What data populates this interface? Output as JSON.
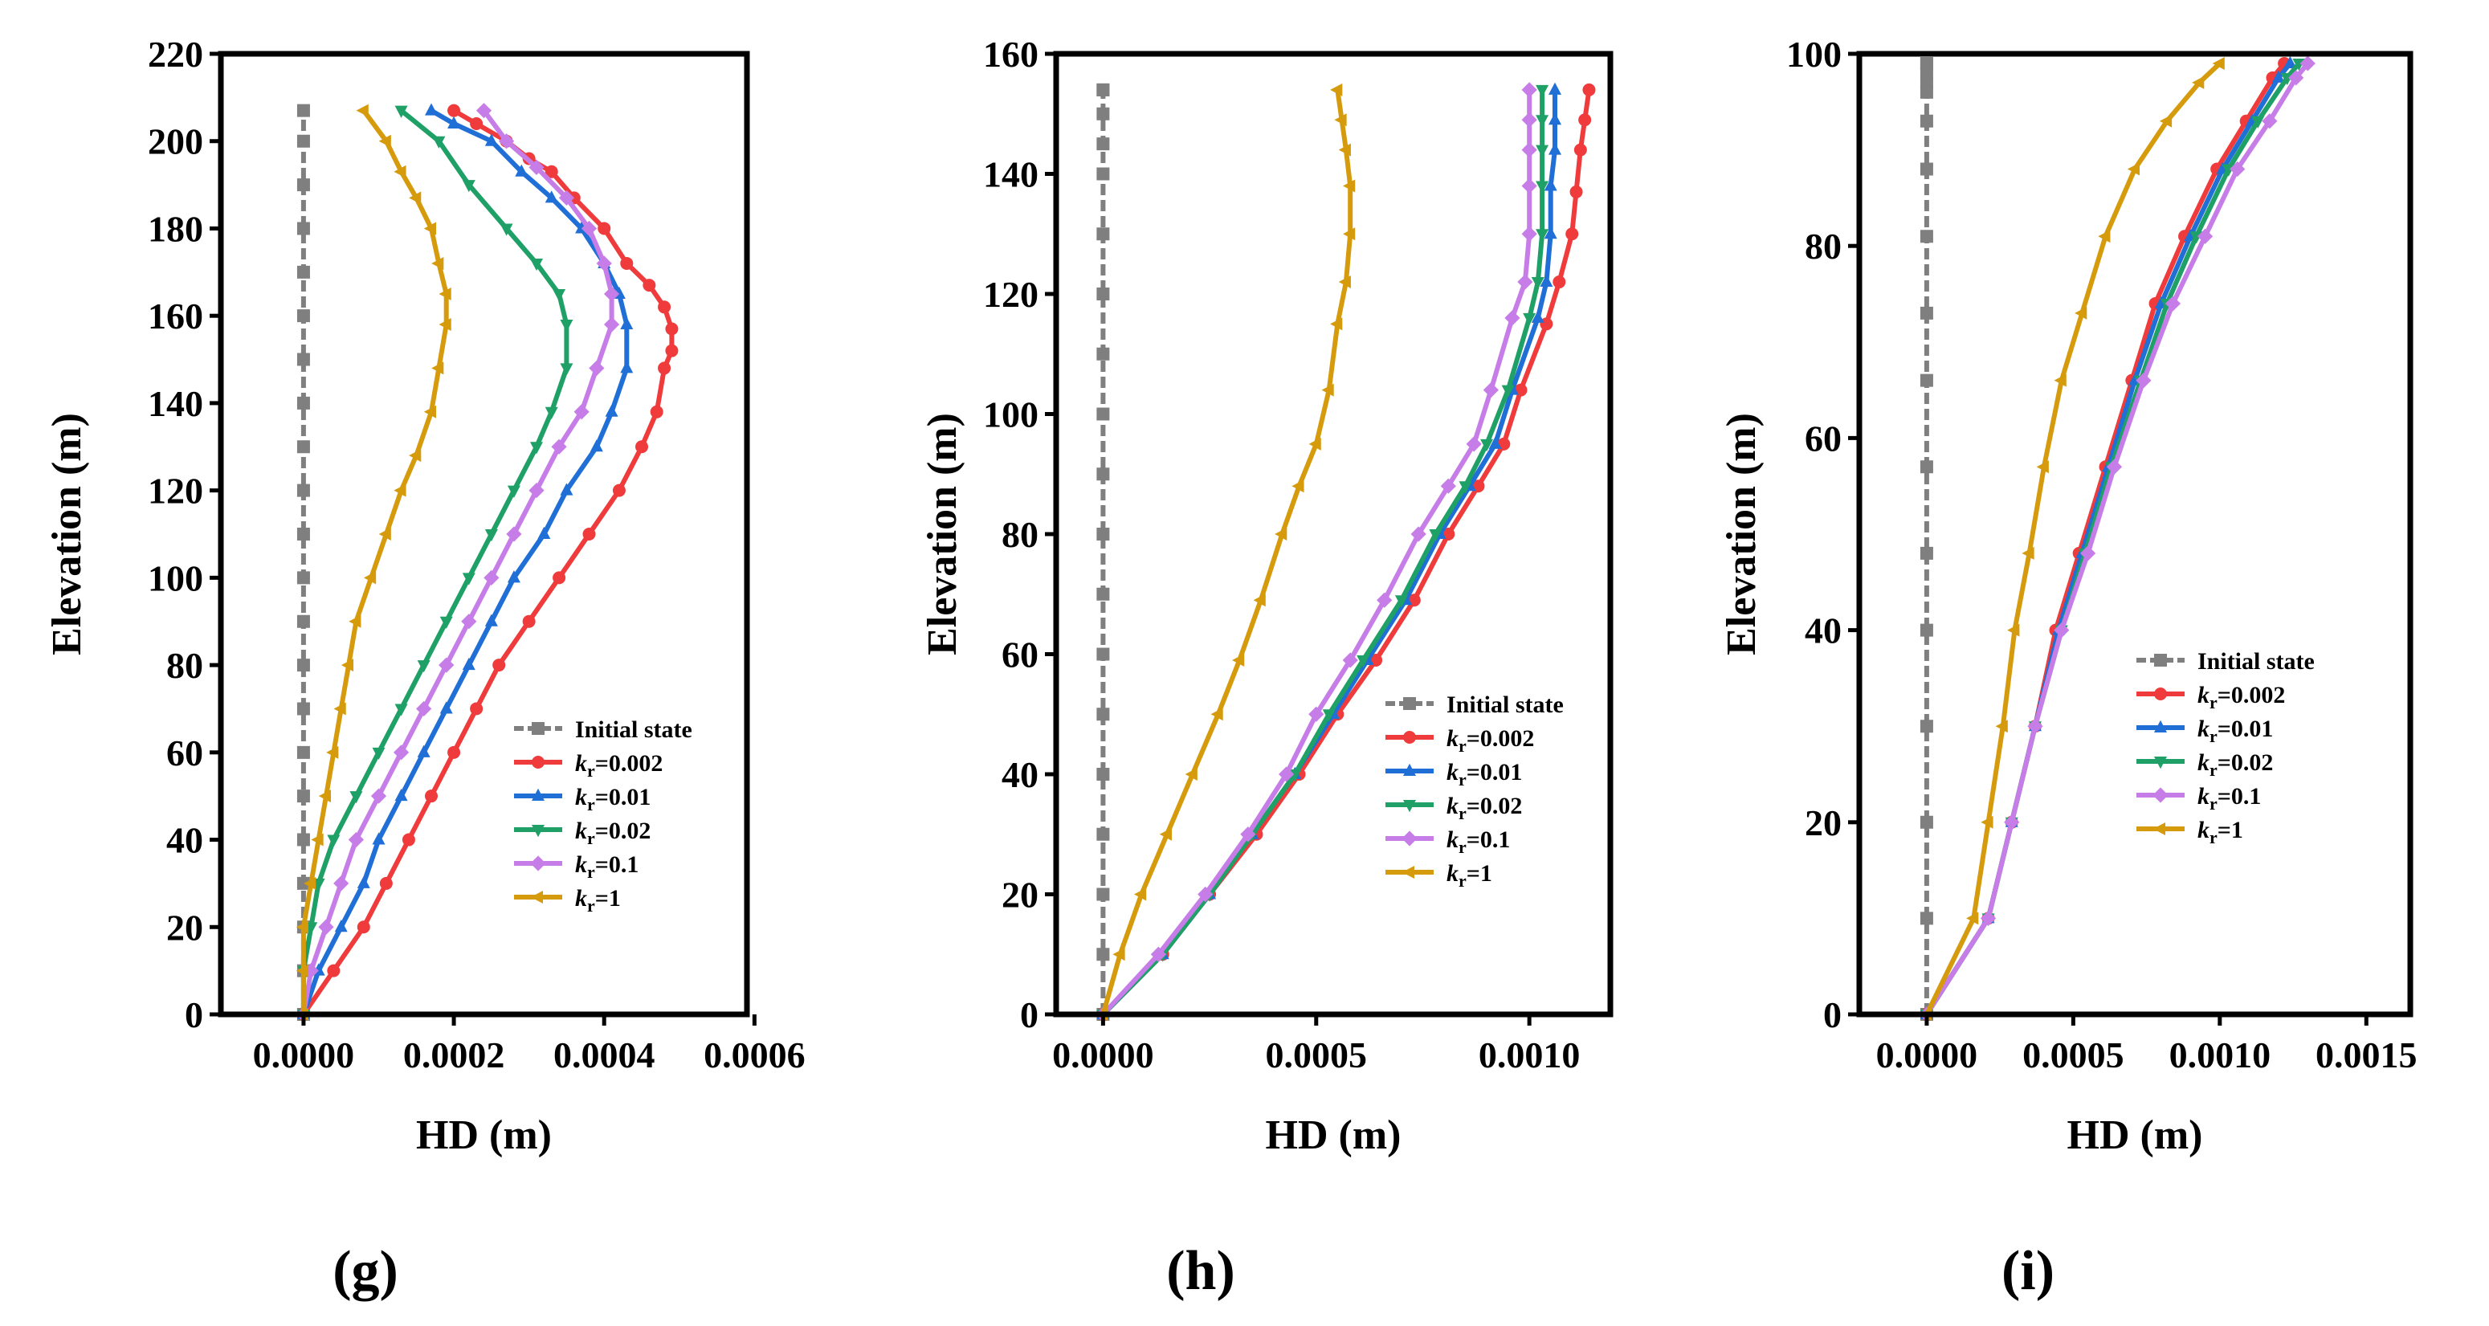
{
  "chart_data": [
    {
      "type": "line",
      "panel_label": "(g)",
      "xlabel": "HD (m)",
      "ylabel": "Elevation (m)",
      "xlim": [
        -0.00011,
        0.00059
      ],
      "ylim": [
        0,
        220
      ],
      "xticks": [
        0,
        0.0002,
        0.0004,
        0.0006
      ],
      "xtick_labels": [
        "0.0000",
        "0.0002",
        "0.0004",
        "0.0006"
      ],
      "yticks": [
        0,
        20,
        40,
        60,
        80,
        100,
        120,
        140,
        160,
        180,
        200,
        220
      ],
      "ytick_labels": [
        "0",
        "20",
        "40",
        "60",
        "80",
        "100",
        "120",
        "140",
        "160",
        "180",
        "200",
        "220"
      ],
      "legend_position": "bottom-right",
      "series": [
        {
          "name": "Initial state",
          "label_main": "Initial state",
          "label_sub": "",
          "label_tail": "",
          "color": "#7f7f7f",
          "marker": "square",
          "dashed": true,
          "x": [
            0,
            0,
            0,
            0,
            0,
            0,
            0,
            0,
            0,
            0,
            0,
            0,
            0,
            0,
            0,
            0,
            0,
            0,
            0,
            0,
            0,
            0
          ],
          "y": [
            0,
            10,
            20,
            30,
            40,
            50,
            60,
            70,
            80,
            90,
            100,
            110,
            120,
            130,
            140,
            150,
            160,
            170,
            180,
            190,
            200,
            207
          ]
        },
        {
          "name": "kr=0.002",
          "label_main": "k",
          "label_sub": "r",
          "label_tail": "=0.002",
          "color": "#ef3b3b",
          "marker": "circle",
          "x": [
            0,
            4e-05,
            8e-05,
            0.00011,
            0.00014,
            0.00017,
            0.0002,
            0.00023,
            0.00026,
            0.0003,
            0.00034,
            0.00038,
            0.00042,
            0.00045,
            0.00047,
            0.00048,
            0.00049,
            0.00049,
            0.00048,
            0.00046,
            0.00043,
            0.0004,
            0.00036,
            0.00033,
            0.0003,
            0.00027,
            0.00023,
            0.0002
          ],
          "y": [
            0,
            10,
            20,
            30,
            40,
            50,
            60,
            70,
            80,
            90,
            100,
            110,
            120,
            130,
            138,
            148,
            152,
            157,
            162,
            167,
            172,
            180,
            187,
            193,
            196,
            200,
            204,
            207
          ]
        },
        {
          "name": "kr=0.01",
          "label_main": "k",
          "label_sub": "r",
          "label_tail": "=0.01",
          "color": "#1f6fd6",
          "marker": "triangle-up",
          "x": [
            0,
            2e-05,
            5e-05,
            8e-05,
            0.0001,
            0.00013,
            0.00016,
            0.00019,
            0.00022,
            0.00025,
            0.00028,
            0.00032,
            0.00035,
            0.00039,
            0.00041,
            0.00043,
            0.00043,
            0.00042,
            0.0004,
            0.00037,
            0.00033,
            0.00029,
            0.00025,
            0.0002,
            0.00017
          ],
          "y": [
            0,
            10,
            20,
            30,
            40,
            50,
            60,
            70,
            80,
            90,
            100,
            110,
            120,
            130,
            138,
            148,
            158,
            165,
            172,
            180,
            187,
            193,
            200,
            204,
            207
          ]
        },
        {
          "name": "kr=0.02",
          "label_main": "k",
          "label_sub": "r",
          "label_tail": "=0.02",
          "color": "#1fa067",
          "marker": "triangle-down",
          "x": [
            0,
            0,
            1e-05,
            2e-05,
            4e-05,
            7e-05,
            0.0001,
            0.00013,
            0.00016,
            0.00019,
            0.00022,
            0.00025,
            0.00028,
            0.00031,
            0.00033,
            0.00035,
            0.00035,
            0.00034,
            0.00031,
            0.00027,
            0.00022,
            0.00018,
            0.00013
          ],
          "y": [
            0,
            10,
            20,
            30,
            40,
            50,
            60,
            70,
            80,
            90,
            100,
            110,
            120,
            130,
            138,
            148,
            158,
            165,
            172,
            180,
            190,
            200,
            207
          ]
        },
        {
          "name": "kr=0.1",
          "label_main": "k",
          "label_sub": "r",
          "label_tail": "=0.1",
          "color": "#c77de8",
          "marker": "diamond",
          "x": [
            0,
            1e-05,
            3e-05,
            5e-05,
            7e-05,
            0.0001,
            0.00013,
            0.00016,
            0.00019,
            0.00022,
            0.00025,
            0.00028,
            0.00031,
            0.00034,
            0.00037,
            0.00039,
            0.00041,
            0.00041,
            0.0004,
            0.00038,
            0.00035,
            0.00031,
            0.00027,
            0.00024
          ],
          "y": [
            0,
            10,
            20,
            30,
            40,
            50,
            60,
            70,
            80,
            90,
            100,
            110,
            120,
            130,
            138,
            148,
            158,
            165,
            172,
            180,
            187,
            194,
            200,
            207
          ]
        },
        {
          "name": "kr=1",
          "label_main": "k",
          "label_sub": "r",
          "label_tail": "=1",
          "color": "#d59b0d",
          "marker": "triangle-left",
          "x": [
            0,
            0,
            0,
            1e-05,
            2e-05,
            3e-05,
            4e-05,
            5e-05,
            6e-05,
            7e-05,
            9e-05,
            0.00011,
            0.00013,
            0.00015,
            0.00017,
            0.00018,
            0.00019,
            0.00019,
            0.00018,
            0.00017,
            0.00015,
            0.00013,
            0.00011,
            8e-05
          ],
          "y": [
            0,
            10,
            20,
            30,
            40,
            50,
            60,
            70,
            80,
            90,
            100,
            110,
            120,
            128,
            138,
            148,
            158,
            165,
            172,
            180,
            187,
            193,
            200,
            207
          ]
        }
      ]
    },
    {
      "type": "line",
      "panel_label": "(h)",
      "xlabel": "HD (m)",
      "ylabel": "Elevation (m)",
      "xlim": [
        -0.00011,
        0.00119
      ],
      "ylim": [
        0,
        160
      ],
      "xticks": [
        0,
        0.0005,
        0.001
      ],
      "xtick_labels": [
        "0.0000",
        "0.0005",
        "0.0010"
      ],
      "yticks": [
        0,
        20,
        40,
        60,
        80,
        100,
        120,
        140,
        160
      ],
      "ytick_labels": [
        "0",
        "20",
        "40",
        "60",
        "80",
        "100",
        "120",
        "140",
        "160"
      ],
      "legend_position": "bottom-right",
      "series": [
        {
          "name": "Initial state",
          "label_main": "Initial state",
          "label_sub": "",
          "label_tail": "",
          "color": "#7f7f7f",
          "marker": "square",
          "dashed": true,
          "x": [
            0,
            0,
            0,
            0,
            0,
            0,
            0,
            0,
            0,
            0,
            0,
            0,
            0,
            0,
            0,
            0,
            0,
            0,
            0
          ],
          "y": [
            0,
            10,
            20,
            30,
            40,
            50,
            60,
            70,
            80,
            90,
            100,
            110,
            120,
            130,
            140,
            145,
            150,
            154,
            154
          ]
        },
        {
          "name": "kr=0.002",
          "label_main": "k",
          "label_sub": "r",
          "label_tail": "=0.002",
          "color": "#ef3b3b",
          "marker": "circle",
          "x": [
            0,
            0.00014,
            0.00025,
            0.00036,
            0.00046,
            0.00055,
            0.00064,
            0.00073,
            0.00081,
            0.00088,
            0.00094,
            0.00098,
            0.00104,
            0.00107,
            0.0011,
            0.00111,
            0.00112,
            0.00113,
            0.00114
          ],
          "y": [
            0,
            10,
            20,
            30,
            40,
            50,
            59,
            69,
            80,
            88,
            95,
            104,
            115,
            122,
            130,
            137,
            144,
            149,
            154
          ]
        },
        {
          "name": "kr=0.01",
          "label_main": "k",
          "label_sub": "r",
          "label_tail": "=0.01",
          "color": "#1f6fd6",
          "marker": "triangle-up",
          "x": [
            0,
            0.00014,
            0.00025,
            0.00035,
            0.00045,
            0.00054,
            0.00062,
            0.00071,
            0.00079,
            0.00086,
            0.00092,
            0.00096,
            0.00102,
            0.00104,
            0.00105,
            0.00105,
            0.00106,
            0.00106,
            0.00106
          ],
          "y": [
            0,
            10,
            20,
            30,
            40,
            50,
            59,
            69,
            80,
            88,
            95,
            104,
            116,
            122,
            130,
            138,
            144,
            149,
            154
          ]
        },
        {
          "name": "kr=0.02",
          "label_main": "k",
          "label_sub": "r",
          "label_tail": "=0.02",
          "color": "#1fa067",
          "marker": "triangle-down",
          "x": [
            0,
            0.00014,
            0.00025,
            0.00035,
            0.00045,
            0.00053,
            0.00061,
            0.0007,
            0.00078,
            0.00085,
            0.0009,
            0.00095,
            0.001,
            0.00102,
            0.00103,
            0.00103,
            0.00103,
            0.00103,
            0.00103
          ],
          "y": [
            0,
            10,
            20,
            30,
            40,
            50,
            59,
            69,
            80,
            88,
            95,
            104,
            116,
            122,
            130,
            138,
            144,
            149,
            154
          ]
        },
        {
          "name": "kr=0.1",
          "label_main": "k",
          "label_sub": "r",
          "label_tail": "=0.1",
          "color": "#c77de8",
          "marker": "diamond",
          "x": [
            0,
            0.00013,
            0.00024,
            0.00034,
            0.00043,
            0.0005,
            0.00058,
            0.00066,
            0.00074,
            0.00081,
            0.00087,
            0.00091,
            0.00096,
            0.00099,
            0.001,
            0.001,
            0.001,
            0.001,
            0.001
          ],
          "y": [
            0,
            10,
            20,
            30,
            40,
            50,
            59,
            69,
            80,
            88,
            95,
            104,
            116,
            122,
            130,
            138,
            144,
            149,
            154
          ]
        },
        {
          "name": "kr=1",
          "label_main": "k",
          "label_sub": "r",
          "label_tail": "=1",
          "color": "#d59b0d",
          "marker": "triangle-left",
          "x": [
            0,
            4e-05,
            9e-05,
            0.00015,
            0.00021,
            0.00027,
            0.00032,
            0.00037,
            0.00042,
            0.00046,
            0.0005,
            0.00053,
            0.00055,
            0.00057,
            0.00058,
            0.00058,
            0.00057,
            0.00056,
            0.00055
          ],
          "y": [
            0,
            10,
            20,
            30,
            40,
            50,
            59,
            69,
            80,
            88,
            95,
            104,
            115,
            122,
            130,
            138,
            144,
            149,
            154
          ]
        }
      ]
    },
    {
      "type": "line",
      "panel_label": "(i)",
      "xlabel": "HD (m)",
      "ylabel": "Elevation (m)",
      "xlim": [
        -0.00023,
        0.00165
      ],
      "ylim": [
        0,
        100
      ],
      "xticks": [
        0,
        0.0005,
        0.001,
        0.0015
      ],
      "xtick_labels": [
        "0.0000",
        "0.0005",
        "0.0010",
        "0.0015"
      ],
      "yticks": [
        0,
        20,
        40,
        60,
        80,
        100
      ],
      "ytick_labels": [
        "0",
        "20",
        "40",
        "60",
        "80",
        "100"
      ],
      "legend_position": "bottom-right",
      "series": [
        {
          "name": "Initial state",
          "label_main": "Initial state",
          "label_sub": "",
          "label_tail": "",
          "color": "#7f7f7f",
          "marker": "square",
          "dashed": true,
          "x": [
            0,
            0,
            0,
            0,
            0,
            0,
            0,
            0,
            0,
            0,
            0,
            0,
            0,
            0,
            0,
            0,
            0
          ],
          "y": [
            0,
            10,
            20,
            30,
            40,
            48,
            57,
            66,
            73,
            81,
            88,
            93,
            96,
            97,
            98,
            99,
            99
          ]
        },
        {
          "name": "kr=0.002",
          "label_main": "k",
          "label_sub": "r",
          "label_tail": "=0.002",
          "color": "#ef3b3b",
          "marker": "circle",
          "x": [
            0,
            0.00021,
            0.00029,
            0.00037,
            0.00044,
            0.00052,
            0.00061,
            0.0007,
            0.00078,
            0.00088,
            0.00099,
            0.00109,
            0.00118,
            0.00122
          ],
          "y": [
            0,
            10,
            20,
            30,
            40,
            48,
            57,
            66,
            74,
            81,
            88,
            93,
            97.5,
            99
          ]
        },
        {
          "name": "kr=0.01",
          "label_main": "k",
          "label_sub": "r",
          "label_tail": "=0.01",
          "color": "#1f6fd6",
          "marker": "triangle-up",
          "x": [
            0,
            0.00021,
            0.00029,
            0.00037,
            0.00045,
            0.00053,
            0.00062,
            0.00071,
            0.0008,
            0.0009,
            0.00101,
            0.00111,
            0.0012,
            0.00124
          ],
          "y": [
            0,
            10,
            20,
            30,
            40,
            48,
            57,
            66,
            74,
            81,
            88,
            93,
            97.5,
            99
          ]
        },
        {
          "name": "kr=0.02",
          "label_main": "k",
          "label_sub": "r",
          "label_tail": "=0.02",
          "color": "#1fa067",
          "marker": "triangle-down",
          "x": [
            0,
            0.00021,
            0.00029,
            0.00037,
            0.00046,
            0.00054,
            0.00063,
            0.00073,
            0.00082,
            0.00092,
            0.00103,
            0.00113,
            0.00123,
            0.00127
          ],
          "y": [
            0,
            10,
            20,
            30,
            40,
            48,
            57,
            66,
            74,
            81,
            88,
            93,
            97.5,
            99
          ]
        },
        {
          "name": "kr=0.1",
          "label_main": "k",
          "label_sub": "r",
          "label_tail": "=0.1",
          "color": "#c77de8",
          "marker": "diamond",
          "x": [
            0,
            0.00021,
            0.00029,
            0.00037,
            0.00046,
            0.00055,
            0.00064,
            0.00074,
            0.00084,
            0.00095,
            0.00106,
            0.00117,
            0.00126,
            0.0013
          ],
          "y": [
            0,
            10,
            20,
            30,
            40,
            48,
            57,
            66,
            74,
            81,
            88,
            93,
            97.5,
            99
          ]
        },
        {
          "name": "kr=1",
          "label_main": "k",
          "label_sub": "r",
          "label_tail": "=1",
          "color": "#d59b0d",
          "marker": "triangle-left",
          "x": [
            0,
            0.00016,
            0.00021,
            0.00026,
            0.0003,
            0.00035,
            0.0004,
            0.00046,
            0.00053,
            0.00061,
            0.00071,
            0.00082,
            0.00093,
            0.001
          ],
          "y": [
            0,
            10,
            20,
            30,
            40,
            48,
            57,
            66,
            73,
            81,
            88,
            93,
            97,
            99
          ]
        }
      ]
    }
  ]
}
